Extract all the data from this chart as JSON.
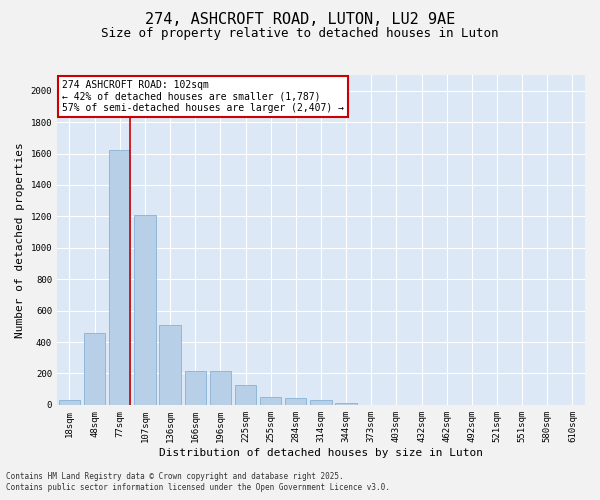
{
  "title": "274, ASHCROFT ROAD, LUTON, LU2 9AE",
  "subtitle": "Size of property relative to detached houses in Luton",
  "xlabel": "Distribution of detached houses by size in Luton",
  "ylabel": "Number of detached properties",
  "categories": [
    "18sqm",
    "48sqm",
    "77sqm",
    "107sqm",
    "136sqm",
    "166sqm",
    "196sqm",
    "225sqm",
    "255sqm",
    "284sqm",
    "314sqm",
    "344sqm",
    "373sqm",
    "403sqm",
    "432sqm",
    "462sqm",
    "492sqm",
    "521sqm",
    "551sqm",
    "580sqm",
    "610sqm"
  ],
  "values": [
    30,
    460,
    1620,
    1210,
    510,
    215,
    215,
    125,
    48,
    45,
    28,
    12,
    0,
    0,
    0,
    0,
    0,
    0,
    0,
    0,
    0
  ],
  "bar_color": "#b8cfe8",
  "bar_edge_color": "#7aaad0",
  "property_line_color": "#cc0000",
  "annotation_text": "274 ASHCROFT ROAD: 102sqm\n← 42% of detached houses are smaller (1,787)\n57% of semi-detached houses are larger (2,407) →",
  "annotation_box_color": "#cc0000",
  "ylim": [
    0,
    2100
  ],
  "yticks": [
    0,
    200,
    400,
    600,
    800,
    1000,
    1200,
    1400,
    1600,
    1800,
    2000
  ],
  "bg_color": "#dce8f5",
  "grid_color": "#ffffff",
  "fig_bg_color": "#f2f2f2",
  "footer_line1": "Contains HM Land Registry data © Crown copyright and database right 2025.",
  "footer_line2": "Contains public sector information licensed under the Open Government Licence v3.0.",
  "title_fontsize": 11,
  "subtitle_fontsize": 9,
  "tick_fontsize": 6.5,
  "ylabel_fontsize": 8,
  "xlabel_fontsize": 8,
  "annotation_fontsize": 7,
  "footer_fontsize": 5.5
}
